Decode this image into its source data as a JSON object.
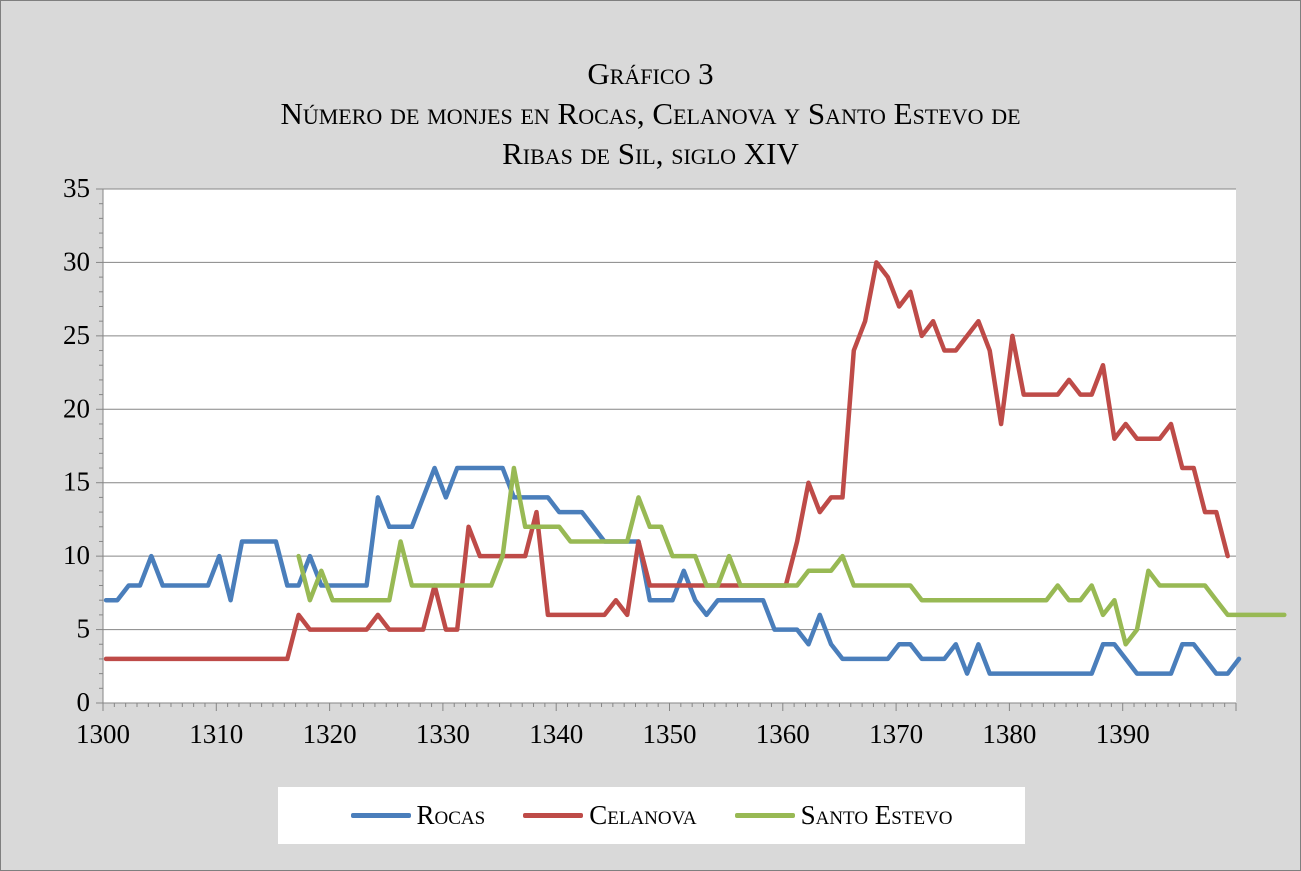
{
  "chart_data": {
    "type": "line",
    "title_lines": [
      "Gráfico 3",
      "Número de monjes en Rocas, Celanova y Santo Estevo de",
      "Ribas de Sil, siglo XIV"
    ],
    "xlabel": "",
    "ylabel": "",
    "xlim": [
      1300,
      1399
    ],
    "ylim": [
      0,
      35
    ],
    "x_ticks": [
      1300,
      1310,
      1320,
      1330,
      1340,
      1350,
      1360,
      1370,
      1380,
      1390
    ],
    "y_ticks": [
      0,
      5,
      10,
      15,
      20,
      25,
      30,
      35
    ],
    "grid": "horizontal",
    "legend_position": "bottom",
    "series": [
      {
        "name": "Rocas",
        "color": "#4a7ebb",
        "start_year": 1300,
        "values": [
          7,
          7,
          8,
          8,
          10,
          8,
          8,
          8,
          8,
          8,
          10,
          7,
          11,
          11,
          11,
          11,
          8,
          8,
          10,
          8,
          8,
          8,
          8,
          8,
          14,
          12,
          12,
          12,
          14,
          16,
          14,
          16,
          16,
          16,
          16,
          16,
          14,
          14,
          14,
          14,
          13,
          13,
          13,
          12,
          11,
          11,
          11,
          11,
          7,
          7,
          7,
          9,
          7,
          6,
          7,
          7,
          7,
          7,
          7,
          5,
          5,
          5,
          4,
          6,
          4,
          3,
          3,
          3,
          3,
          3,
          4,
          4,
          3,
          3,
          3,
          4,
          2,
          4,
          2,
          2,
          2,
          2,
          2,
          2,
          2,
          2,
          2,
          2,
          4,
          4,
          3,
          2,
          2,
          2,
          2,
          4,
          4,
          3,
          2,
          2,
          3
        ]
      },
      {
        "name": "Celanova",
        "color": "#be4b48",
        "start_year": 1300,
        "values": [
          3,
          3,
          3,
          3,
          3,
          3,
          3,
          3,
          3,
          3,
          3,
          3,
          3,
          3,
          3,
          3,
          3,
          6,
          5,
          5,
          5,
          5,
          5,
          5,
          6,
          5,
          5,
          5,
          5,
          8,
          5,
          5,
          12,
          10,
          10,
          10,
          10,
          10,
          13,
          6,
          6,
          6,
          6,
          6,
          6,
          7,
          6,
          11,
          8,
          8,
          8,
          8,
          8,
          8,
          8,
          8,
          8,
          8,
          8,
          8,
          8,
          11,
          15,
          13,
          14,
          14,
          24,
          26,
          30,
          29,
          27,
          28,
          25,
          26,
          24,
          24,
          25,
          26,
          24,
          19,
          25,
          21,
          21,
          21,
          21,
          22,
          21,
          21,
          23,
          18,
          19,
          18,
          18,
          18,
          19,
          16,
          16,
          13,
          13,
          10
        ]
      },
      {
        "name": "Santo Estevo",
        "color": "#98b954",
        "start_year": 1317,
        "values": [
          10,
          7,
          9,
          7,
          7,
          7,
          7,
          7,
          7,
          11,
          8,
          8,
          8,
          8,
          8,
          8,
          8,
          8,
          10,
          16,
          12,
          12,
          12,
          12,
          11,
          11,
          11,
          11,
          11,
          11,
          14,
          12,
          12,
          10,
          10,
          10,
          8,
          8,
          10,
          8,
          8,
          8,
          8,
          8,
          8,
          9,
          9,
          9,
          10,
          8,
          8,
          8,
          8,
          8,
          8,
          7,
          7,
          7,
          7,
          7,
          7,
          7,
          7,
          7,
          7,
          7,
          7,
          8,
          7,
          7,
          8,
          6,
          7,
          4,
          5,
          9,
          8,
          8,
          8,
          8,
          8,
          7,
          6,
          6,
          6,
          6,
          6,
          6
        ]
      }
    ]
  }
}
